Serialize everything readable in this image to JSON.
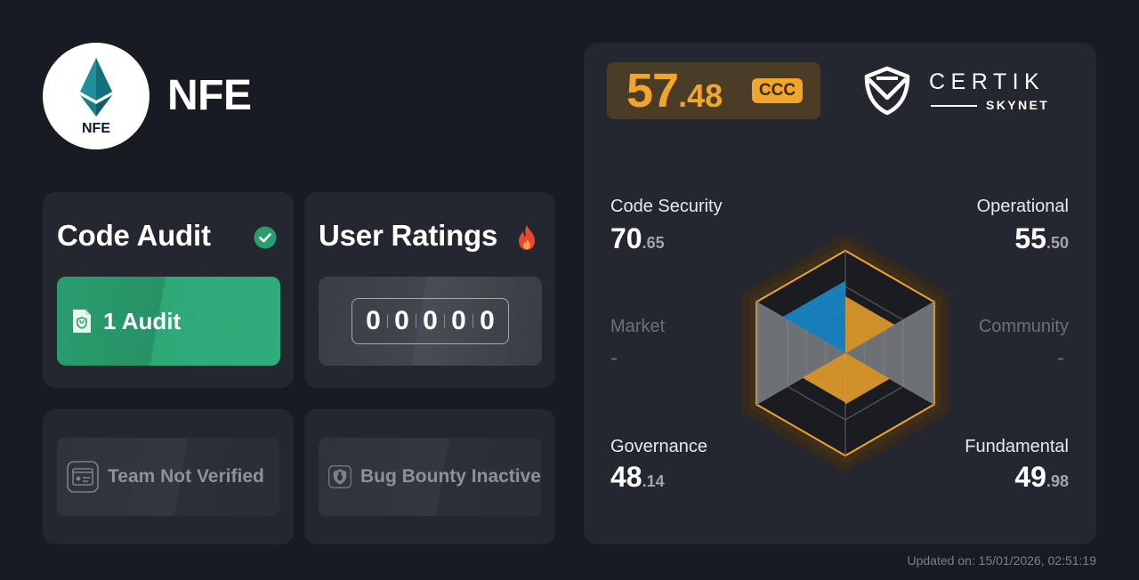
{
  "token": {
    "name": "NFE",
    "logo_text": "NFE"
  },
  "code_audit": {
    "title": "Code Audit",
    "count_label": "1 Audit",
    "check_color": "#2a9d6e"
  },
  "user_ratings": {
    "title": "User Ratings",
    "digits": [
      "0",
      "0",
      "0",
      "0",
      "0"
    ]
  },
  "team": {
    "label": "Team Not Verified"
  },
  "bug_bounty": {
    "label": "Bug Bounty Inactive"
  },
  "score": {
    "integer": "57",
    "decimal": ".48",
    "grade": "CCC",
    "accent": "#f1a629"
  },
  "brand": {
    "name": "CERTIK",
    "sub": "SKYNET"
  },
  "metrics": {
    "code_security": {
      "label": "Code Security",
      "integer": "70",
      "decimal": ".65",
      "value": 70.65
    },
    "operational": {
      "label": "Operational",
      "integer": "55",
      "decimal": ".50",
      "value": 55.5
    },
    "market": {
      "label": "Market",
      "value_text": "-"
    },
    "community": {
      "label": "Community",
      "value_text": "-"
    },
    "governance": {
      "label": "Governance",
      "integer": "48",
      "decimal": ".14",
      "value": 48.14
    },
    "fundamental": {
      "label": "Fundamental",
      "integer": "49",
      "decimal": ".98",
      "value": 49.98
    }
  },
  "updated": "Updated on: 15/01/2026, 02:51:19"
}
